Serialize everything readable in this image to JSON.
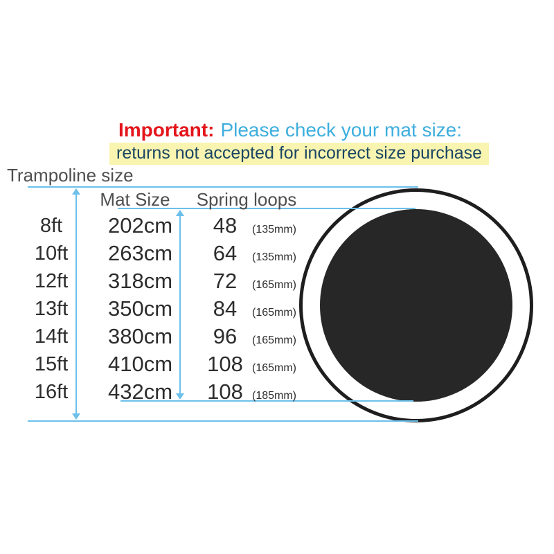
{
  "notice": {
    "important": "Important:",
    "headline": "Please check your mat size:",
    "warning": "returns not accepted for incorrect size purchase"
  },
  "table": {
    "left_axis_label": "Trampoline size",
    "headers": {
      "mat_size": "Mat Size",
      "spring_loops": "Spring loops"
    },
    "rows": [
      {
        "trampoline_size": "8ft",
        "mat_size": "202cm",
        "spring_loops": "48",
        "spring_length": "(135mm)"
      },
      {
        "trampoline_size": "10ft",
        "mat_size": "263cm",
        "spring_loops": "64",
        "spring_length": "(135mm)"
      },
      {
        "trampoline_size": "12ft",
        "mat_size": "318cm",
        "spring_loops": "72",
        "spring_length": "(165mm)"
      },
      {
        "trampoline_size": "13ft",
        "mat_size": "350cm",
        "spring_loops": "84",
        "spring_length": "(165mm)"
      },
      {
        "trampoline_size": "14ft",
        "mat_size": "380cm",
        "spring_loops": "96",
        "spring_length": "(165mm)"
      },
      {
        "trampoline_size": "15ft",
        "mat_size": "410cm",
        "spring_loops": "108",
        "spring_length": "(165mm)"
      },
      {
        "trampoline_size": "16ft",
        "mat_size": "432cm",
        "spring_loops": "108",
        "spring_length": "(185mm)"
      }
    ]
  },
  "colors": {
    "important_red": "#e4151b",
    "headline_blue": "#3daede",
    "warning_text": "#1a4663",
    "warning_highlight": "#f9f4b0",
    "dimension_blue": "#6cc0ea",
    "table_text": "#2d2d2d",
    "header_gray": "#4f4f4f",
    "mat_black": "#272727",
    "frame_outline": "#1e1e1e"
  }
}
